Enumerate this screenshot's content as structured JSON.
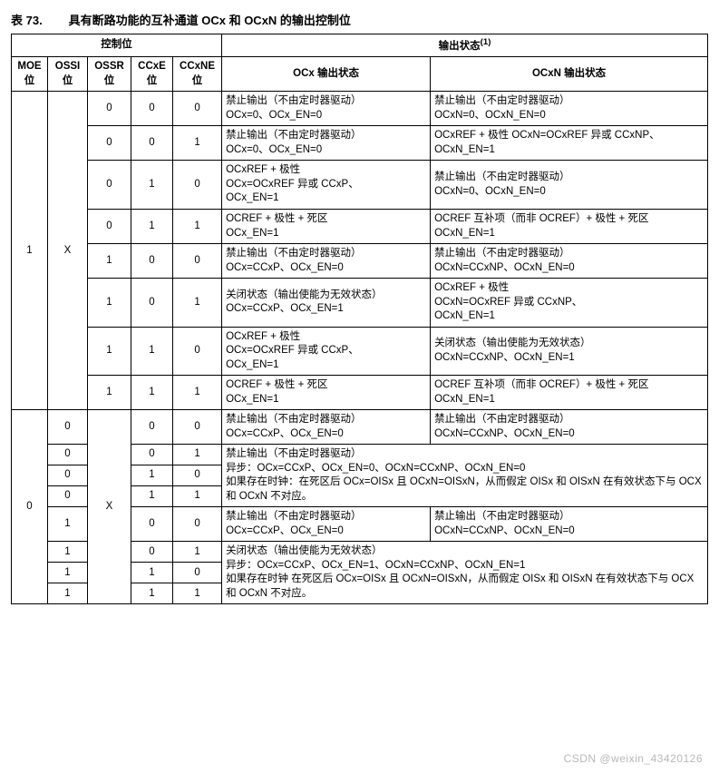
{
  "caption_prefix": "表 73.",
  "caption_title": "具有断路功能的互补通道 OCx 和 OCxN 的输出控制位",
  "head_group_ctrl": "控制位",
  "head_group_out": "输出状态",
  "sup1": "(1)",
  "head_moe": "MOE\n位",
  "head_ossi": "OSSI\n位",
  "head_ossr": "OSSR\n位",
  "head_ccxe": "CCxE\n位",
  "head_ccxne": "CCxNE\n位",
  "head_ocx": "OCx 输出状态",
  "head_ocxn": "OCxN 输出状态",
  "moe1": "1",
  "x": "X",
  "r1": {
    "ossr": "0",
    "ccxe": "0",
    "ccxne": "0",
    "ocx": "禁止输出（不由定时器驱动）\nOCx=0、OCx_EN=0",
    "ocxn": "禁止输出（不由定时器驱动）\nOCxN=0、OCxN_EN=0"
  },
  "r2": {
    "ossr": "0",
    "ccxe": "0",
    "ccxne": "1",
    "ocx": "禁止输出（不由定时器驱动）\nOCx=0、OCx_EN=0",
    "ocxn": "OCxREF + 极性 OCxN=OCxREF 异或 CCxNP、OCxN_EN=1"
  },
  "r3": {
    "ossr": "0",
    "ccxe": "1",
    "ccxne": "0",
    "ocx": "OCxREF + 极性\nOCx=OCxREF 异或 CCxP、\nOCx_EN=1",
    "ocxn": "禁止输出（不由定时器驱动）\nOCxN=0、OCxN_EN=0"
  },
  "r4": {
    "ossr": "0",
    "ccxe": "1",
    "ccxne": "1",
    "ocx": "OCREF + 极性 + 死区\nOCx_EN=1",
    "ocxn": "OCREF 互补项（而非 OCREF）+ 极性 + 死区\nOCxN_EN=1"
  },
  "r5": {
    "ossr": "1",
    "ccxe": "0",
    "ccxne": "0",
    "ocx": "禁止输出（不由定时器驱动）\nOCx=CCxP、OCx_EN=0",
    "ocxn": "禁止输出（不由定时器驱动）\nOCxN=CCxNP、OCxN_EN=0"
  },
  "r6": {
    "ossr": "1",
    "ccxe": "0",
    "ccxne": "1",
    "ocx": "关闭状态（输出使能为无效状态）\nOCx=CCxP、OCx_EN=1",
    "ocxn": "OCxREF + 极性\nOCxN=OCxREF 异或 CCxNP、\nOCxN_EN=1"
  },
  "r7": {
    "ossr": "1",
    "ccxe": "1",
    "ccxne": "0",
    "ocx": "OCxREF + 极性\nOCx=OCxREF 异或 CCxP、\nOCx_EN=1",
    "ocxn": "关闭状态（输出使能为无效状态）\nOCxN=CCxNP、OCxN_EN=1"
  },
  "r8": {
    "ossr": "1",
    "ccxe": "1",
    "ccxne": "1",
    "ocx": "OCREF + 极性 + 死区\nOCx_EN=1",
    "ocxn": "OCREF 互补项（而非 OCREF）+ 极性 + 死区\nOCxN_EN=1"
  },
  "moe0": "0",
  "b1": {
    "ossi": "0",
    "ccxe": "0",
    "ccxne": "0",
    "ocx": "禁止输出（不由定时器驱动）\nOCx=CCxP、OCx_EN=0",
    "ocxn": "禁止输出（不由定时器驱动）\nOCxN=CCxNP、OCxN_EN=0"
  },
  "b2": {
    "ossi": "0",
    "ccxe": "0",
    "ccxne": "1"
  },
  "b3": {
    "ossi": "0",
    "ccxe": "1",
    "ccxne": "0"
  },
  "b4": {
    "ossi": "0",
    "ccxe": "1",
    "ccxne": "1"
  },
  "merge_b": "禁止输出（不由定时器驱动）\n异步：OCx=CCxP、OCx_EN=0、OCxN=CCxNP、OCxN_EN=0\n如果存在时钟：在死区后 OCx=OISx 且 OCxN=OISxN，从而假定 OISx 和 OISxN 在有效状态下与 OCX 和 OCxN 不对应。",
  "b5": {
    "ossi": "1",
    "ccxe": "0",
    "ccxne": "0",
    "ocx": "禁止输出（不由定时器驱动）\nOCx=CCxP、OCx_EN=0",
    "ocxn": "禁止输出（不由定时器驱动）\nOCxN=CCxNP、OCxN_EN=0"
  },
  "b6": {
    "ossi": "1",
    "ccxe": "0",
    "ccxne": "1"
  },
  "b7": {
    "ossi": "1",
    "ccxe": "1",
    "ccxne": "0"
  },
  "b8": {
    "ossi": "1",
    "ccxe": "1",
    "ccxne": "1"
  },
  "merge_b2": "关闭状态（输出使能为无效状态）\n异步：OCx=CCxP、OCx_EN=1、OCxN=CCxNP、OCxN_EN=1\n如果存在时钟 在死区后 OCx=OISx 且 OCxN=OISxN，从而假定 OISx 和 OISxN 在有效状态下与 OCX 和 OCxN 不对应。",
  "watermark": "CSDN @weixin_43420126"
}
